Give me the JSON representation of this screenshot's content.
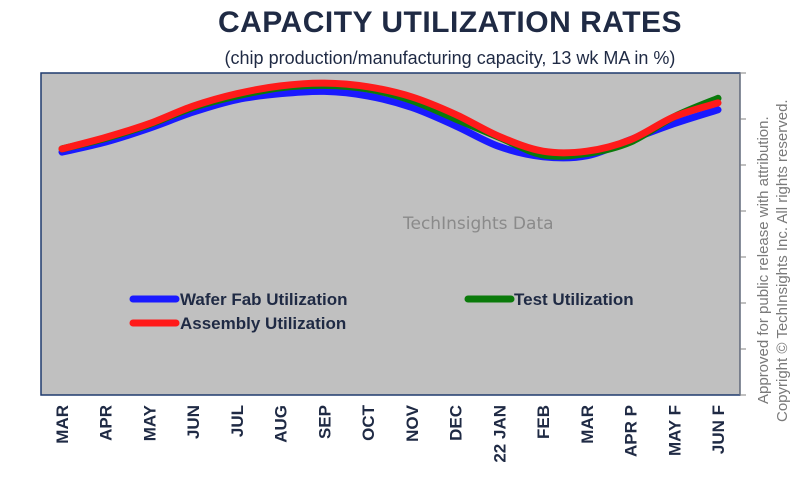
{
  "chart_data": {
    "type": "line",
    "title": "CAPACITY UTILIZATION RATES",
    "subtitle": "(chip production/manufacturing capacity, 13 wk MA in %)",
    "watermark": "TechInsights Data",
    "side_note_1": "Approved for public release with attribution.",
    "side_note_2": "Copyright © TechInsights Inc. All rights reserved.",
    "categories": [
      "MAR",
      "APR",
      "MAY",
      "JUN",
      "JUL",
      "AUG",
      "SEP",
      "OCT",
      "NOV",
      "DEC",
      "22 JAN",
      "FEB",
      "MAR",
      "APR P",
      "MAY F",
      "JUN F"
    ],
    "ylim": [
      0,
      7
    ],
    "y_ticks": 7,
    "series": [
      {
        "name": "Wafer Fab Utilization",
        "color": "#1a1aff",
        "values": [
          5.28,
          5.5,
          5.8,
          6.15,
          6.42,
          6.55,
          6.6,
          6.5,
          6.25,
          5.85,
          5.4,
          5.18,
          5.2,
          5.55,
          5.9,
          6.2
        ]
      },
      {
        "name": "Test  Utilization",
        "color": "#0a7a0a",
        "values": [
          5.35,
          5.58,
          5.88,
          6.25,
          6.5,
          6.68,
          6.73,
          6.65,
          6.4,
          6.0,
          5.6,
          5.22,
          5.25,
          5.5,
          6.05,
          6.45
        ]
      },
      {
        "name": "Assembly Utilization",
        "color": "#ff1a1a",
        "values": [
          5.35,
          5.6,
          5.9,
          6.28,
          6.55,
          6.72,
          6.78,
          6.7,
          6.48,
          6.1,
          5.62,
          5.3,
          5.3,
          5.55,
          6.05,
          6.35
        ]
      }
    ],
    "legend_position": "lower-left"
  }
}
